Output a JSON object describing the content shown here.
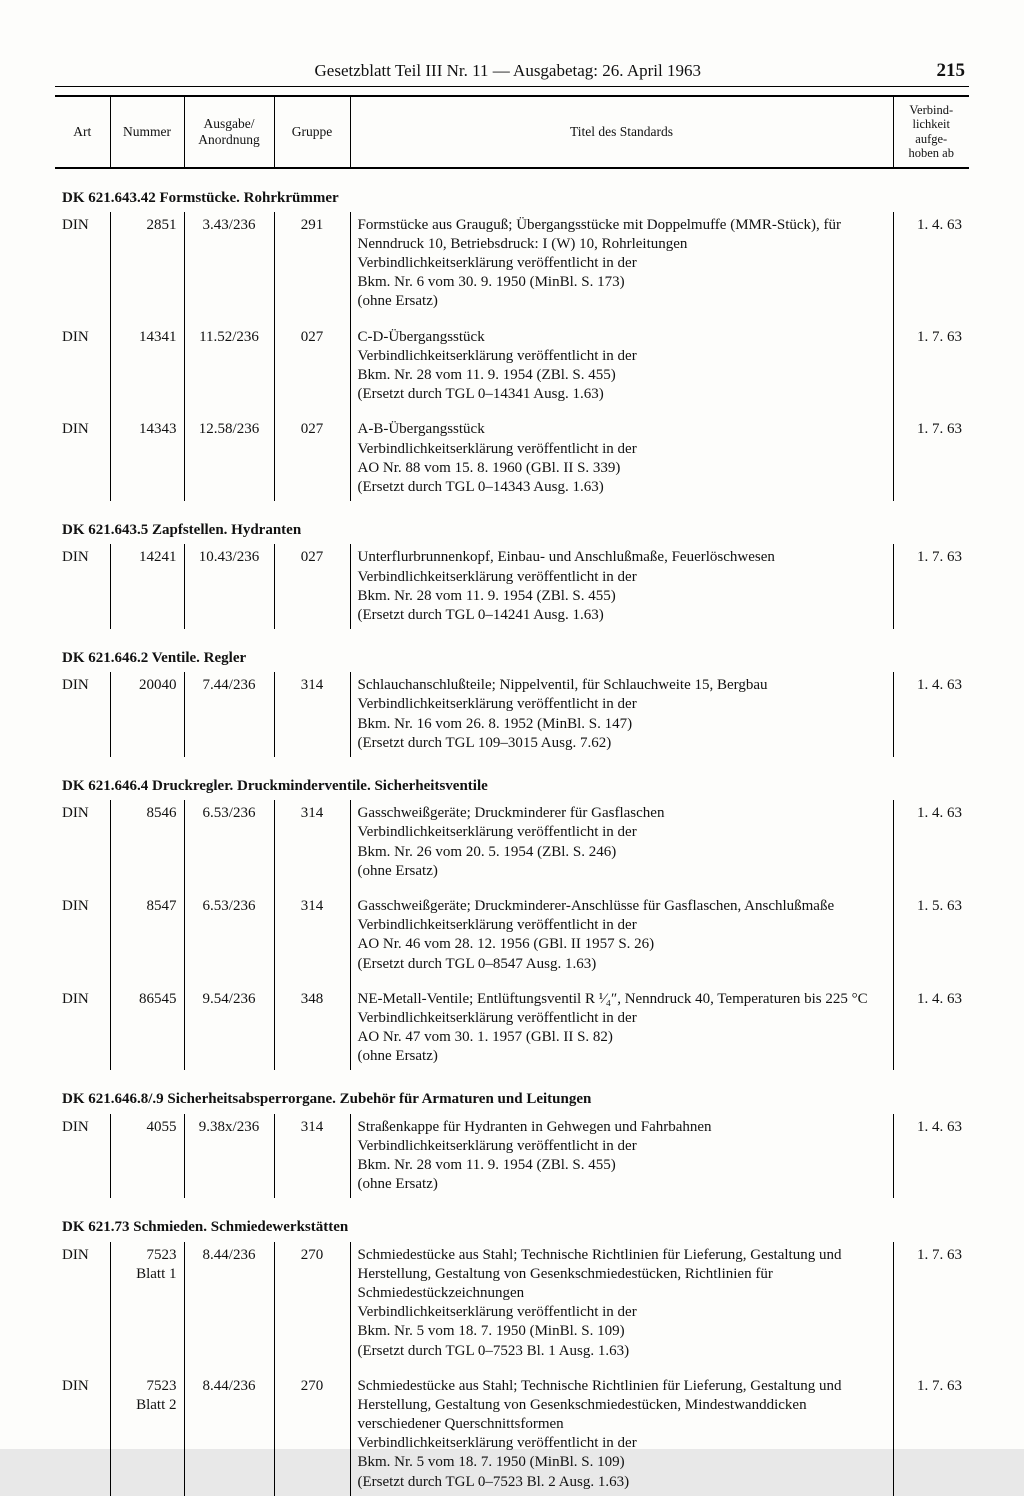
{
  "header": {
    "center": "Gesetzblatt Teil III Nr. 11 — Ausgabetag: 26. April 1963",
    "page_number": "215"
  },
  "table": {
    "columns": {
      "art": "Art",
      "nummer": "Nummer",
      "ausgabe": "Ausgabe/\nAnordnung",
      "gruppe": "Gruppe",
      "titel": "Titel des Standards",
      "verbind": "Verbind-\nlichkeit\naufge-\nhoben ab"
    }
  },
  "sections": [
    {
      "heading": "DK 621.643.42 Formstücke. Rohrkrümmer",
      "rows": [
        {
          "art": "DIN",
          "nummer": "2851",
          "ausgabe": "3.43/236",
          "gruppe": "291",
          "titel": "Formstücke aus Grauguß; Übergangsstücke mit Doppelmuffe (MMR-Stück), für Nenndruck 10, Betriebsdruck: I (W) 10, Rohrleitungen\nVerbindlichkeitserklärung veröffentlicht in der\nBkm. Nr. 6 vom 30. 9. 1950 (MinBl. S. 173)\n(ohne Ersatz)",
          "date": "1. 4. 63"
        },
        {
          "art": "DIN",
          "nummer": "14341",
          "ausgabe": "11.52/236",
          "gruppe": "027",
          "titel": "C-D-Übergangsstück\nVerbindlichkeitserklärung veröffentlicht in der\nBkm. Nr. 28 vom 11. 9. 1954 (ZBl. S. 455)\n(Ersetzt durch TGL 0–14341 Ausg. 1.63)",
          "date": "1. 7. 63"
        },
        {
          "art": "DIN",
          "nummer": "14343",
          "ausgabe": "12.58/236",
          "gruppe": "027",
          "titel": "A-B-Übergangsstück\nVerbindlichkeitserklärung veröffentlicht in der\nAO Nr. 88 vom 15. 8. 1960 (GBl. II S. 339)\n(Ersetzt durch TGL 0–14343 Ausg. 1.63)",
          "date": "1. 7. 63"
        }
      ]
    },
    {
      "heading": "DK 621.643.5 Zapfstellen. Hydranten",
      "rows": [
        {
          "art": "DIN",
          "nummer": "14241",
          "ausgabe": "10.43/236",
          "gruppe": "027",
          "titel": "Unterflurbrunnenkopf, Einbau- und Anschlußmaße, Feuerlöschwesen\nVerbindlichkeitserklärung veröffentlicht in der\nBkm. Nr. 28 vom 11. 9. 1954 (ZBl. S. 455)\n(Ersetzt durch TGL 0–14241 Ausg. 1.63)",
          "date": "1. 7. 63"
        }
      ]
    },
    {
      "heading": "DK 621.646.2 Ventile. Regler",
      "rows": [
        {
          "art": "DIN",
          "nummer": "20040",
          "ausgabe": "7.44/236",
          "gruppe": "314",
          "titel": "Schlauchanschlußteile; Nippelventil, für Schlauchweite 15, Bergbau\nVerbindlichkeitserklärung veröffentlicht in der\nBkm. Nr. 16 vom 26. 8. 1952 (MinBl. S. 147)\n(Ersetzt durch TGL 109–3015 Ausg. 7.62)",
          "date": "1. 4. 63"
        }
      ]
    },
    {
      "heading": "DK 621.646.4 Druckregler. Druckminderventile. Sicherheitsventile",
      "rows": [
        {
          "art": "DIN",
          "nummer": "8546",
          "ausgabe": "6.53/236",
          "gruppe": "314",
          "titel": "Gasschweißgeräte; Druckminderer für Gasflaschen\nVerbindlichkeitserklärung veröffentlicht in der\nBkm. Nr. 26 vom 20. 5. 1954 (ZBl. S. 246)\n(ohne Ersatz)",
          "date": "1. 4. 63"
        },
        {
          "art": "DIN",
          "nummer": "8547",
          "ausgabe": "6.53/236",
          "gruppe": "314",
          "titel": "Gasschweißgeräte; Druckminderer-Anschlüsse für Gasflaschen, Anschlußmaße\nVerbindlichkeitserklärung veröffentlicht in der\nAO Nr. 46 vom 28. 12. 1956 (GBl. II 1957 S. 26)\n(Ersetzt durch TGL 0–8547 Ausg. 1.63)",
          "date": "1. 5. 63"
        },
        {
          "art": "DIN",
          "nummer": "86545",
          "ausgabe": "9.54/236",
          "gruppe": "348",
          "titel": "NE-Metall-Ventile; Entlüftungsventil R ¹⁄₄″, Nenndruck 40, Temperaturen bis 225 °C\nVerbindlichkeitserklärung veröffentlicht in der\nAO Nr. 47 vom 30. 1. 1957 (GBl. II S. 82)\n(ohne Ersatz)",
          "date": "1. 4. 63"
        }
      ]
    },
    {
      "heading": "DK 621.646.8/.9 Sicherheitsabsperrorgane. Zubehör für Armaturen und Leitungen",
      "rows": [
        {
          "art": "DIN",
          "nummer": "4055",
          "ausgabe": "9.38x/236",
          "gruppe": "314",
          "titel": "Straßenkappe für Hydranten in Gehwegen und Fahrbahnen\nVerbindlichkeitserklärung veröffentlicht in der\nBkm. Nr. 28 vom 11. 9. 1954 (ZBl. S. 455)\n(ohne Ersatz)",
          "date": "1. 4. 63"
        }
      ]
    },
    {
      "heading": "DK 621.73 Schmieden. Schmiedewerkstätten",
      "rows": [
        {
          "art": "DIN",
          "nummer": "7523\nBlatt 1",
          "ausgabe": "8.44/236",
          "gruppe": "270",
          "titel": "Schmiedestücke aus Stahl; Technische Richtlinien für Lieferung, Gestaltung und Herstellung, Gestaltung von Gesenkschmiedestücken, Richtlinien für Schmiedestückzeichnungen\nVerbindlichkeitserklärung veröffentlicht in der\nBkm. Nr. 5 vom 18. 7. 1950 (MinBl. S. 109)\n(Ersetzt durch TGL 0–7523 Bl. 1 Ausg. 1.63)",
          "date": "1. 7. 63"
        },
        {
          "art": "DIN",
          "nummer": "7523\nBlatt 2",
          "ausgabe": "8.44/236",
          "gruppe": "270",
          "titel": "Schmiedestücke aus Stahl; Technische Richtlinien für Lieferung, Gestaltung und Herstellung, Gestaltung von Gesenkschmiedestücken, Mindestwanddicken verschiedener Querschnittsformen\nVerbindlichkeitserklärung veröffentlicht in der\nBkm. Nr. 5 vom 18. 7. 1950 (MinBl. S. 109)\n(Ersetzt durch TGL 0–7523 Bl. 2 Ausg. 1.63)",
          "date": "1. 7. 63"
        }
      ]
    }
  ]
}
